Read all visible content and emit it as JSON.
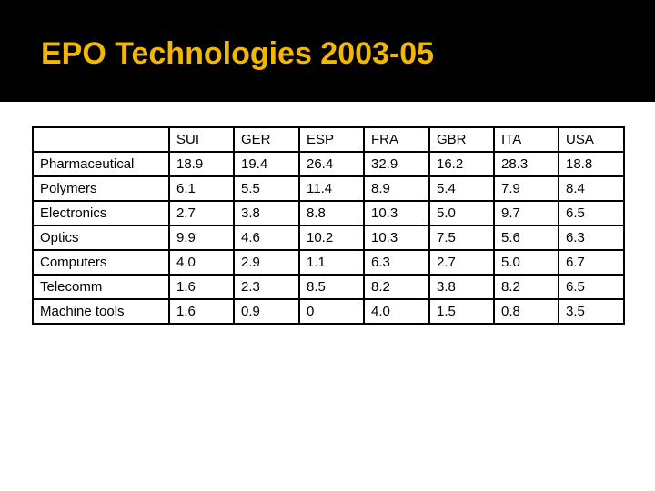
{
  "title": "EPO Technologies 2003-05",
  "table": {
    "header": [
      "SUI",
      "GER",
      "ESP",
      "FRA",
      "GBR",
      "ITA",
      "USA"
    ],
    "rows": [
      [
        "Pharmaceutical",
        "18.9",
        "19.4",
        "26.4",
        "32.9",
        "16.2",
        "28.3",
        "18.8"
      ],
      [
        "Polymers",
        "6.1",
        "5.5",
        "11.4",
        "8.9",
        "5.4",
        "7.9",
        "8.4"
      ],
      [
        "Electronics",
        "2.7",
        "3.8",
        "8.8",
        "10.3",
        "5.0",
        "9.7",
        "6.5"
      ],
      [
        "Optics",
        "9.9",
        "4.6",
        "10.2",
        "10.3",
        "7.5",
        "5.6",
        "6.3"
      ],
      [
        "Computers",
        "4.0",
        "2.9",
        "1.1",
        "6.3",
        "2.7",
        "5.0",
        "6.7"
      ],
      [
        "Telecomm",
        "1.6",
        "2.3",
        "8.5",
        "8.2",
        "3.8",
        "8.2",
        "6.5"
      ],
      [
        "Machine tools",
        "1.6",
        "0.9",
        "0",
        "4.0",
        "1.5",
        "0.8",
        "3.5"
      ]
    ]
  }
}
